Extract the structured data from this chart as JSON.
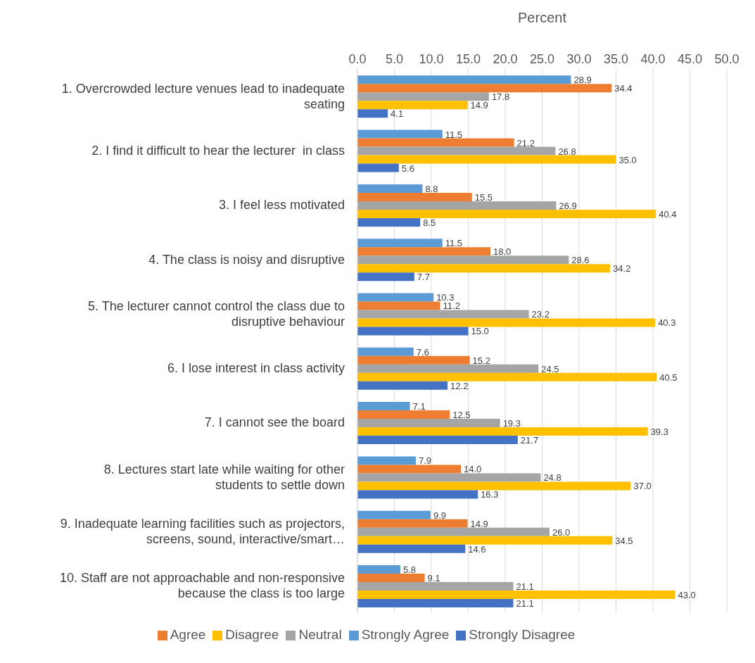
{
  "chart_data": {
    "type": "bar",
    "orientation": "horizontal",
    "xlabel": "Percent",
    "categories": [
      "1. Overcrowded lecture venues lead to inadequate seating",
      "2. I find it difficult to hear the lecturer  in class",
      "3. I feel less motivated",
      "4. The class is noisy and disruptive",
      "5. The lecturer cannot control the class due to disruptive behaviour",
      "6. I lose interest in class activity",
      "7. I cannot see the board",
      "8. Lectures start late while waiting for other students to settle down",
      "9. Inadequate learning facilities such as projectors, screens, sound, interactive/smart…",
      "10. Staff are not approachable and non-responsive because the class is too large"
    ],
    "series": [
      {
        "name": "Strongly Agree",
        "color": "#5b9bd5",
        "values": [
          28.9,
          11.5,
          8.8,
          11.5,
          10.3,
          7.6,
          7.1,
          7.9,
          9.9,
          5.8
        ],
        "value_labels": [
          "28.9",
          "11.5",
          "8.8",
          "11.5",
          "10.3",
          "7.6",
          "7.1",
          "7.9",
          "9.9",
          "5.8"
        ]
      },
      {
        "name": "Agree",
        "color": "#ed7d31",
        "values": [
          34.4,
          21.2,
          15.5,
          18.0,
          11.2,
          15.2,
          12.5,
          14.0,
          14.9,
          9.1
        ],
        "value_labels": [
          "34.4",
          "21.2",
          "15.5",
          "18.0",
          "11.2",
          "15.2",
          "12.5",
          "14.0",
          "14.9",
          "9.1"
        ]
      },
      {
        "name": "Neutral",
        "color": "#a5a5a5",
        "values": [
          17.8,
          26.8,
          26.9,
          28.6,
          23.2,
          24.5,
          19.3,
          24.8,
          26.0,
          21.1
        ],
        "value_labels": [
          "17.8",
          "26.8",
          "26.9",
          "28.6",
          "23.2",
          "24.5",
          "19.3",
          "24.8",
          "26.0",
          "21.1"
        ]
      },
      {
        "name": "Disagree",
        "color": "#ffc000",
        "values": [
          14.9,
          35.0,
          40.4,
          34.2,
          40.3,
          40.5,
          39.3,
          37.0,
          34.5,
          43.0
        ],
        "value_labels": [
          "14.9",
          "35.0",
          "40.4",
          "34.2",
          "40.3",
          "40.5",
          "39.3",
          "37.0",
          "34.5",
          "43.0"
        ]
      },
      {
        "name": "Strongly Disagree",
        "color": "#4472c4",
        "values": [
          4.1,
          5.6,
          8.5,
          7.7,
          15.0,
          12.2,
          21.7,
          16.3,
          14.6,
          21.1
        ],
        "value_labels": [
          "4.1",
          "5.6",
          "8.5",
          "7.7",
          "15.0",
          "12.2",
          "21.7",
          "16.3",
          "14.6",
          "21.1"
        ]
      }
    ],
    "xlim": [
      0,
      50
    ],
    "xticks": [
      {
        "value": 0,
        "label": "0.0"
      },
      {
        "value": 5,
        "label": "5.0"
      },
      {
        "value": 10,
        "label": "10.0"
      },
      {
        "value": 15,
        "label": "15.0"
      },
      {
        "value": 20,
        "label": "20.0"
      },
      {
        "value": 25,
        "label": "25.0"
      },
      {
        "value": 30,
        "label": "30.0"
      },
      {
        "value": 35,
        "label": "35.0"
      },
      {
        "value": 40,
        "label": "40.0"
      },
      {
        "value": 45,
        "label": "45.0"
      },
      {
        "value": 50,
        "label": "50.0"
      }
    ],
    "grid": "x",
    "legend": "bottom"
  }
}
